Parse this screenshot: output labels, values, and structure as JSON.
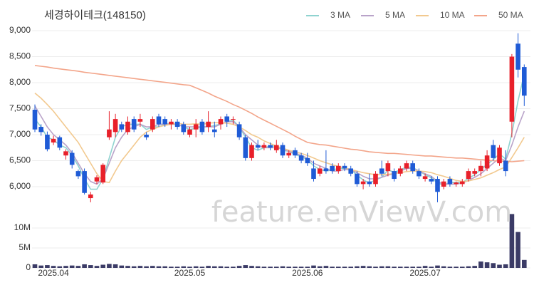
{
  "chart_data": [
    {
      "type": "candlestick",
      "title": "세경하이테크(148150)",
      "watermark": "feature.enViewV.com",
      "up_color": "#e8202a",
      "down_color": "#1f5bd6",
      "grid": true,
      "categories": [
        null,
        null,
        null,
        "2025.04",
        null,
        null,
        null,
        null,
        null,
        null,
        null,
        null,
        null,
        null,
        null,
        null,
        null,
        null,
        null,
        null,
        null,
        null,
        null,
        null,
        null,
        "2025.05",
        null,
        null,
        null,
        null,
        null,
        null,
        null,
        null,
        null,
        null,
        null,
        null,
        null,
        null,
        null,
        null,
        null,
        null,
        "2025.06",
        null,
        null,
        null,
        null,
        null,
        null,
        null,
        null,
        null,
        null,
        null,
        null,
        null,
        null,
        null,
        null,
        null,
        null,
        "2025.07",
        null,
        null,
        null,
        null,
        null,
        null,
        null,
        null,
        null,
        null,
        null,
        null,
        null,
        null,
        null,
        null
      ],
      "open": [
        7480,
        7150,
        7000,
        6850,
        6950,
        6600,
        6650,
        6300,
        6300,
        5780,
        6100,
        6080,
        6950,
        7050,
        7200,
        7050,
        7300,
        7250,
        7000,
        7100,
        7350,
        7300,
        7200,
        7250,
        7200,
        7000,
        7100,
        7250,
        7150,
        7100,
        7200,
        7350,
        7300,
        7200,
        6950,
        6550,
        6800,
        6750,
        6800,
        6700,
        6800,
        6600,
        6700,
        6600,
        6550,
        6350,
        6250,
        6350,
        6400,
        6300,
        6400,
        6350,
        6250,
        6050,
        6100,
        6050,
        6350,
        6300,
        6300,
        6250,
        6350,
        6450,
        6300,
        6150,
        6150,
        6150,
        6000,
        6150,
        6050,
        6050,
        6150,
        6250,
        6300,
        6350,
        6800,
        6450,
        6500,
        7250,
        8750,
        8300
      ],
      "high": [
        7580,
        7200,
        7060,
        6980,
        6980,
        6720,
        6700,
        6330,
        6350,
        5900,
        6220,
        6450,
        7450,
        7400,
        7250,
        7350,
        7350,
        7400,
        7050,
        7350,
        7400,
        7350,
        7300,
        7300,
        7250,
        7150,
        7300,
        7300,
        7450,
        7250,
        7350,
        7400,
        7350,
        7250,
        7000,
        6850,
        6900,
        6850,
        6850,
        6900,
        6850,
        6700,
        6750,
        6650,
        6650,
        6500,
        6400,
        6700,
        6450,
        6450,
        6450,
        6400,
        6300,
        6150,
        6250,
        6300,
        6500,
        6500,
        6350,
        6400,
        6500,
        6500,
        6350,
        6250,
        6200,
        6200,
        6150,
        6200,
        6100,
        6150,
        6350,
        6350,
        6500,
        6700,
        6900,
        6800,
        6700,
        8550,
        8950,
        8350
      ],
      "low": [
        7050,
        6980,
        6680,
        6800,
        6700,
        6520,
        6350,
        6150,
        5850,
        5700,
        6050,
        6050,
        6900,
        6950,
        7050,
        7000,
        7050,
        7150,
        6900,
        7050,
        7150,
        7150,
        7100,
        7100,
        7000,
        6950,
        6950,
        7000,
        7050,
        6950,
        7100,
        7150,
        7200,
        6900,
        6500,
        6500,
        6700,
        6700,
        6700,
        6650,
        6550,
        6550,
        6550,
        6450,
        6400,
        6100,
        6200,
        6250,
        6250,
        6250,
        6300,
        6200,
        6000,
        5950,
        6000,
        6000,
        6200,
        6200,
        6100,
        6200,
        6300,
        6250,
        6150,
        6100,
        6050,
        5700,
        5950,
        6000,
        6000,
        6000,
        6100,
        6200,
        6200,
        6300,
        6500,
        6400,
        6200,
        6950,
        8100,
        7550
      ],
      "close": [
        7100,
        7050,
        6720,
        6920,
        6750,
        6680,
        6420,
        6200,
        5880,
        5850,
        6180,
        6420,
        7100,
        7300,
        7100,
        7250,
        7100,
        7300,
        6950,
        7300,
        7200,
        7200,
        7250,
        7150,
        7050,
        7100,
        7200,
        7050,
        7250,
        7050,
        7300,
        7250,
        7300,
        6950,
        6550,
        6800,
        6750,
        6800,
        6750,
        6800,
        6600,
        6650,
        6600,
        6500,
        6450,
        6150,
        6350,
        6300,
        6300,
        6400,
        6350,
        6250,
        6050,
        6100,
        6050,
        6250,
        6250,
        6450,
        6150,
        6350,
        6450,
        6300,
        6200,
        6200,
        6100,
        5900,
        6100,
        6050,
        6080,
        6100,
        6300,
        6300,
        6400,
        6600,
        6550,
        6750,
        6300,
        8500,
        8250,
        7750
      ],
      "series": [
        {
          "name": "3 MA",
          "color": "#8fd3d0",
          "values": [
            7300,
            7150,
            6950,
            6900,
            6800,
            6750,
            6600,
            6400,
            6150,
            5950,
            5950,
            6150,
            6550,
            6950,
            7150,
            7200,
            7200,
            7200,
            7100,
            7150,
            7150,
            7200,
            7220,
            7200,
            7150,
            7100,
            7120,
            7150,
            7150,
            7180,
            7200,
            7250,
            7280,
            7150,
            6950,
            6750,
            6700,
            6750,
            6780,
            6780,
            6700,
            6680,
            6620,
            6580,
            6520,
            6400,
            6330,
            6300,
            6320,
            6350,
            6350,
            6330,
            6220,
            6130,
            6070,
            6130,
            6180,
            6320,
            6280,
            6320,
            6380,
            6370,
            6300,
            6230,
            6170,
            6070,
            6030,
            6080,
            6080,
            6080,
            6160,
            6230,
            6330,
            6430,
            6520,
            6630,
            6530,
            7020,
            7650,
            8170
          ]
        },
        {
          "name": "5 MA",
          "color": "#b9a3c9",
          "values": [
            7550,
            7350,
            7150,
            7000,
            6900,
            6800,
            6650,
            6450,
            6250,
            6100,
            6050,
            6150,
            6450,
            6750,
            6950,
            7100,
            7150,
            7200,
            7150,
            7150,
            7200,
            7200,
            7200,
            7200,
            7150,
            7150,
            7150,
            7150,
            7150,
            7150,
            7200,
            7250,
            7250,
            7150,
            7000,
            6900,
            6800,
            6750,
            6750,
            6750,
            6720,
            6680,
            6650,
            6600,
            6550,
            6450,
            6400,
            6350,
            6300,
            6300,
            6330,
            6320,
            6270,
            6200,
            6150,
            6150,
            6180,
            6220,
            6250,
            6300,
            6350,
            6350,
            6300,
            6250,
            6200,
            6100,
            6050,
            6050,
            6050,
            6070,
            6120,
            6180,
            6250,
            6350,
            6450,
            6550,
            6500,
            6800,
            7150,
            7450
          ]
        },
        {
          "name": "10 MA",
          "color": "#f2c98f",
          "values": [
            7800,
            7700,
            7580,
            7450,
            7300,
            7150,
            7000,
            6850,
            6650,
            6450,
            6250,
            6100,
            6080,
            6300,
            6500,
            6650,
            6800,
            6950,
            7050,
            7100,
            7150,
            7180,
            7200,
            7220,
            7200,
            7200,
            7210,
            7200,
            7220,
            7230,
            7230,
            7220,
            7200,
            7150,
            7080,
            7000,
            6950,
            6880,
            6830,
            6780,
            6740,
            6700,
            6670,
            6640,
            6600,
            6550,
            6500,
            6460,
            6420,
            6390,
            6360,
            6330,
            6300,
            6270,
            6250,
            6230,
            6230,
            6240,
            6250,
            6270,
            6290,
            6300,
            6300,
            6290,
            6270,
            6230,
            6200,
            6160,
            6120,
            6100,
            6110,
            6140,
            6170,
            6220,
            6270,
            6330,
            6380,
            6560,
            6750,
            6950
          ]
        },
        {
          "name": "50 MA",
          "color": "#f3a58a",
          "values": [
            8330,
            8315,
            8300,
            8280,
            8265,
            8250,
            8235,
            8220,
            8200,
            8185,
            8170,
            8155,
            8140,
            8125,
            8110,
            8095,
            8080,
            8065,
            8050,
            8035,
            8020,
            8005,
            7990,
            7975,
            7960,
            7950,
            7900,
            7850,
            7800,
            7740,
            7690,
            7640,
            7580,
            7530,
            7470,
            7410,
            7340,
            7280,
            7220,
            7160,
            7100,
            7040,
            6970,
            6910,
            6850,
            6830,
            6810,
            6800,
            6780,
            6760,
            6740,
            6720,
            6710,
            6690,
            6670,
            6660,
            6650,
            6640,
            6640,
            6630,
            6620,
            6610,
            6600,
            6590,
            6590,
            6580,
            6570,
            6560,
            6550,
            6550,
            6540,
            6530,
            6520,
            6510,
            6500,
            6490,
            6490,
            6480,
            6490,
            6500
          ]
        }
      ],
      "ylim": [
        5600,
        9100
      ],
      "yticks": [
        {
          "value": 6000,
          "label": "6,000"
        },
        {
          "value": 6500,
          "label": "6,500"
        },
        {
          "value": 7000,
          "label": "7,000"
        },
        {
          "value": 7500,
          "label": "7,500"
        },
        {
          "value": 8000,
          "label": "8,000"
        },
        {
          "value": 8500,
          "label": "8,500"
        },
        {
          "value": 9000,
          "label": "9,000"
        }
      ]
    },
    {
      "type": "bar",
      "color": "#3b3b66",
      "values": [
        900000,
        600000,
        700000,
        500000,
        400000,
        500000,
        600000,
        500000,
        900000,
        700000,
        500000,
        800000,
        1000000,
        900000,
        600000,
        500000,
        400000,
        500000,
        400000,
        500000,
        400000,
        400000,
        300000,
        300000,
        400000,
        300000,
        400000,
        300000,
        500000,
        400000,
        400000,
        300000,
        300000,
        500000,
        700000,
        500000,
        400000,
        300000,
        300000,
        300000,
        400000,
        300000,
        300000,
        300000,
        300000,
        600000,
        400000,
        500000,
        300000,
        300000,
        300000,
        300000,
        400000,
        500000,
        400000,
        300000,
        400000,
        400000,
        300000,
        300000,
        300000,
        300000,
        300000,
        500000,
        300000,
        600000,
        400000,
        300000,
        300000,
        300000,
        400000,
        500000,
        1600000,
        1400000,
        1200000,
        800000,
        900000,
        13500000,
        9000000,
        2000000
      ],
      "ylim": [
        0,
        13500000
      ],
      "yticks": [
        0,
        {
          "value": 5000000,
          "label": "5M"
        },
        {
          "value": 10000000,
          "label": "10M"
        }
      ]
    }
  ]
}
